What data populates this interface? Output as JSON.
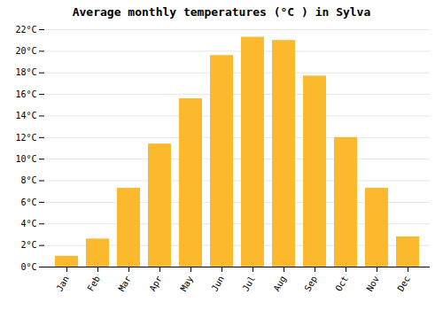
{
  "chart_data": {
    "type": "bar",
    "title": "Average monthly temperatures (°C ) in Sylva",
    "categories": [
      "Jan",
      "Feb",
      "Mar",
      "Apr",
      "May",
      "Jun",
      "Jul",
      "Aug",
      "Sep",
      "Oct",
      "Nov",
      "Dec"
    ],
    "values": [
      1.0,
      2.6,
      7.3,
      11.4,
      15.6,
      19.6,
      21.3,
      21.0,
      17.7,
      12.0,
      7.3,
      2.8
    ],
    "color": "#FDB92E",
    "ylim": [
      0,
      22
    ],
    "yticks": [
      {
        "value": 0,
        "label": "0°C"
      },
      {
        "value": 2,
        "label": "2°C"
      },
      {
        "value": 4,
        "label": "4°C"
      },
      {
        "value": 6,
        "label": "6°C"
      },
      {
        "value": 8,
        "label": "8°C"
      },
      {
        "value": 10,
        "label": "10°C"
      },
      {
        "value": 12,
        "label": "12°C"
      },
      {
        "value": 14,
        "label": "14°C"
      },
      {
        "value": 16,
        "label": "16°C"
      },
      {
        "value": 18,
        "label": "18°C"
      },
      {
        "value": 20,
        "label": "20°C"
      },
      {
        "value": 22,
        "label": "22°C"
      }
    ],
    "grid": true
  }
}
